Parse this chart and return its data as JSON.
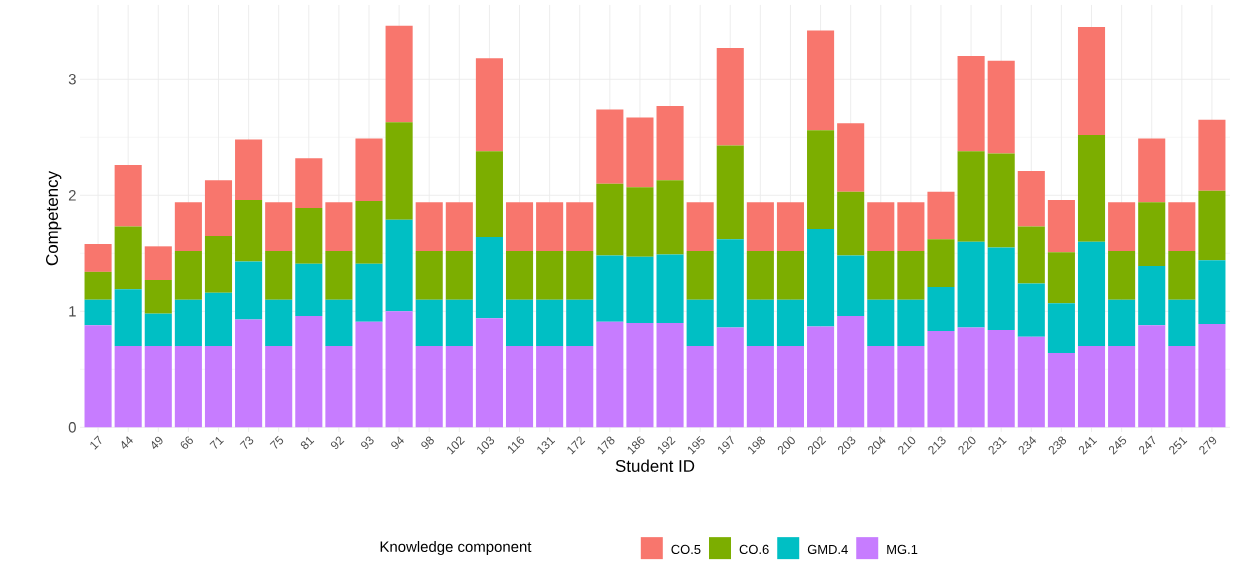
{
  "chart_data": {
    "type": "bar",
    "stacked": true,
    "xlabel": "Student ID",
    "ylabel": "Competency",
    "legend_title": "Knowledge component",
    "categories": [
      "17",
      "44",
      "49",
      "66",
      "71",
      "73",
      "75",
      "81",
      "92",
      "93",
      "94",
      "98",
      "102",
      "103",
      "116",
      "131",
      "172",
      "178",
      "186",
      "192",
      "195",
      "197",
      "198",
      "200",
      "202",
      "203",
      "204",
      "210",
      "213",
      "220",
      "231",
      "234",
      "238",
      "241",
      "245",
      "247",
      "251",
      "279"
    ],
    "series": [
      {
        "name": "MG.1",
        "color": "#c77cff",
        "values": [
          0.88,
          0.7,
          0.7,
          0.7,
          0.7,
          0.93,
          0.7,
          0.96,
          0.7,
          0.91,
          1.0,
          0.7,
          0.7,
          0.94,
          0.7,
          0.7,
          0.7,
          0.91,
          0.9,
          0.9,
          0.7,
          0.86,
          0.7,
          0.7,
          0.87,
          0.96,
          0.7,
          0.7,
          0.83,
          0.86,
          0.84,
          0.78,
          0.64,
          0.7,
          0.7,
          0.88,
          0.7,
          0.89
        ]
      },
      {
        "name": "GMD.4",
        "color": "#00bfc4",
        "values": [
          0.22,
          0.49,
          0.28,
          0.4,
          0.46,
          0.5,
          0.4,
          0.45,
          0.4,
          0.5,
          0.79,
          0.4,
          0.4,
          0.7,
          0.4,
          0.4,
          0.4,
          0.57,
          0.57,
          0.59,
          0.4,
          0.76,
          0.4,
          0.4,
          0.84,
          0.52,
          0.4,
          0.4,
          0.38,
          0.74,
          0.71,
          0.46,
          0.43,
          0.9,
          0.4,
          0.51,
          0.4,
          0.55
        ]
      },
      {
        "name": "CO.6",
        "color": "#7cae00",
        "values": [
          0.24,
          0.54,
          0.29,
          0.42,
          0.49,
          0.53,
          0.42,
          0.48,
          0.42,
          0.54,
          0.84,
          0.42,
          0.42,
          0.74,
          0.42,
          0.42,
          0.42,
          0.62,
          0.6,
          0.64,
          0.42,
          0.81,
          0.42,
          0.42,
          0.85,
          0.55,
          0.42,
          0.42,
          0.41,
          0.78,
          0.81,
          0.49,
          0.44,
          0.92,
          0.42,
          0.55,
          0.42,
          0.6
        ]
      },
      {
        "name": "CO.5",
        "color": "#f8766d",
        "values": [
          0.24,
          0.53,
          0.29,
          0.42,
          0.48,
          0.52,
          0.42,
          0.43,
          0.42,
          0.54,
          0.83,
          0.42,
          0.42,
          0.8,
          0.42,
          0.42,
          0.42,
          0.64,
          0.6,
          0.64,
          0.42,
          0.84,
          0.42,
          0.42,
          0.86,
          0.59,
          0.42,
          0.42,
          0.41,
          0.82,
          0.8,
          0.48,
          0.45,
          0.93,
          0.42,
          0.55,
          0.42,
          0.61
        ]
      }
    ],
    "ylim": [
      -0.04,
      3.64
    ],
    "yticks": [
      0,
      1,
      2,
      3
    ],
    "grid": true,
    "legend": "bottom"
  }
}
